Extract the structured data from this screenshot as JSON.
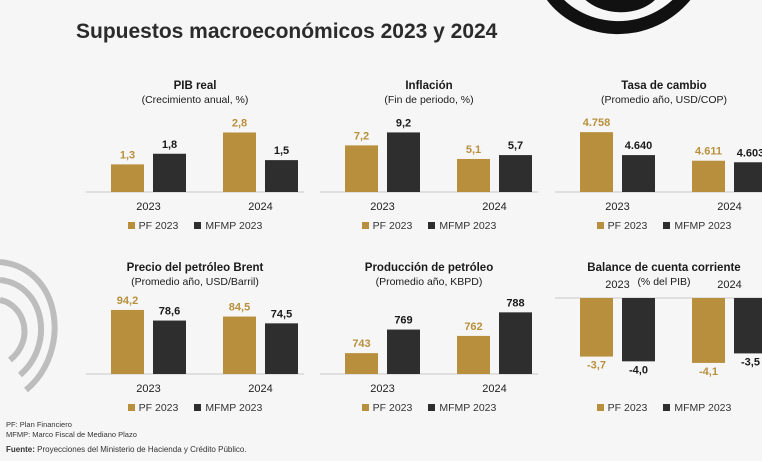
{
  "page": {
    "title": "Supuestos macroeconómicos 2023 y 2024",
    "notes": [
      "PF: Plan Financiero",
      "MFMP: Marco Fiscal de Mediano Plazo"
    ],
    "source_label": "Fuente:",
    "source_text": "Proyecciones del Ministerio de Hacienda y Crédito Público."
  },
  "colors": {
    "pf": "#b8903d",
    "mfmp": "#2e2e2e"
  },
  "chart_data": [
    {
      "type": "bar",
      "title": "PIB real",
      "subtitle": "(Crecimiento anual, %)",
      "categories": [
        "2023",
        "2024"
      ],
      "labels_position": "bottom",
      "ylim": [
        0,
        3.2
      ],
      "series": [
        {
          "name": "PF 2023",
          "values": [
            1.3,
            2.8
          ],
          "labels": [
            "1,3",
            "2,8"
          ]
        },
        {
          "name": "MFMP 2023",
          "values": [
            1.8,
            1.5
          ],
          "labels": [
            "1,8",
            "1,5"
          ]
        }
      ]
    },
    {
      "type": "bar",
      "title": "Inflación",
      "subtitle": "(Fin de periodo, %)",
      "categories": [
        "2023",
        "2024"
      ],
      "labels_position": "bottom",
      "ylim": [
        0,
        10.5
      ],
      "series": [
        {
          "name": "PF 2023",
          "values": [
            7.2,
            5.1
          ],
          "labels": [
            "7,2",
            "5,1"
          ]
        },
        {
          "name": "MFMP 2023",
          "values": [
            9.2,
            5.7
          ],
          "labels": [
            "9,2",
            "5,7"
          ]
        }
      ]
    },
    {
      "type": "bar",
      "title": "Tasa de cambio",
      "subtitle": "(Promedio año, USD/COP)",
      "categories": [
        "2023",
        "2024"
      ],
      "labels_position": "bottom",
      "ylim": [
        4450,
        4800
      ],
      "series": [
        {
          "name": "PF 2023",
          "values": [
            4758,
            4611
          ],
          "labels": [
            "4.758",
            "4.611"
          ]
        },
        {
          "name": "MFMP 2023",
          "values": [
            4640,
            4603
          ],
          "labels": [
            "4.640",
            "4.603"
          ]
        }
      ]
    },
    {
      "type": "bar",
      "title": "Precio del petróleo Brent",
      "subtitle": "(Promedio año, USD/Barril)",
      "categories": [
        "2023",
        "2024"
      ],
      "labels_position": "bottom",
      "ylim": [
        0,
        100
      ],
      "series": [
        {
          "name": "PF 2023",
          "values": [
            94.2,
            84.5
          ],
          "labels": [
            "94,2",
            "84,5"
          ]
        },
        {
          "name": "MFMP 2023",
          "values": [
            78.6,
            74.5
          ],
          "labels": [
            "78,6",
            "74,5"
          ]
        }
      ]
    },
    {
      "type": "bar",
      "title": "Producción de petróleo",
      "subtitle": "(Promedio año, KBPD)",
      "categories": [
        "2023",
        "2024"
      ],
      "labels_position": "bottom",
      "ylim": [
        720,
        795
      ],
      "series": [
        {
          "name": "PF 2023",
          "values": [
            743,
            762
          ],
          "labels": [
            "743",
            "762"
          ]
        },
        {
          "name": "MFMP 2023",
          "values": [
            769,
            788
          ],
          "labels": [
            "769",
            "788"
          ]
        }
      ]
    },
    {
      "type": "bar",
      "title": "Balance de cuenta corriente",
      "subtitle": "(% del PIB)",
      "categories": [
        "2023",
        "2024"
      ],
      "labels_position": "top",
      "ylim": [
        -4.8,
        0
      ],
      "series": [
        {
          "name": "PF 2023",
          "values": [
            -3.7,
            -4.1
          ],
          "labels": [
            "-3,7",
            "-4,1"
          ]
        },
        {
          "name": "MFMP 2023",
          "values": [
            -4.0,
            -3.5
          ],
          "labels": [
            "-4,0",
            "-3,5"
          ]
        }
      ]
    }
  ]
}
